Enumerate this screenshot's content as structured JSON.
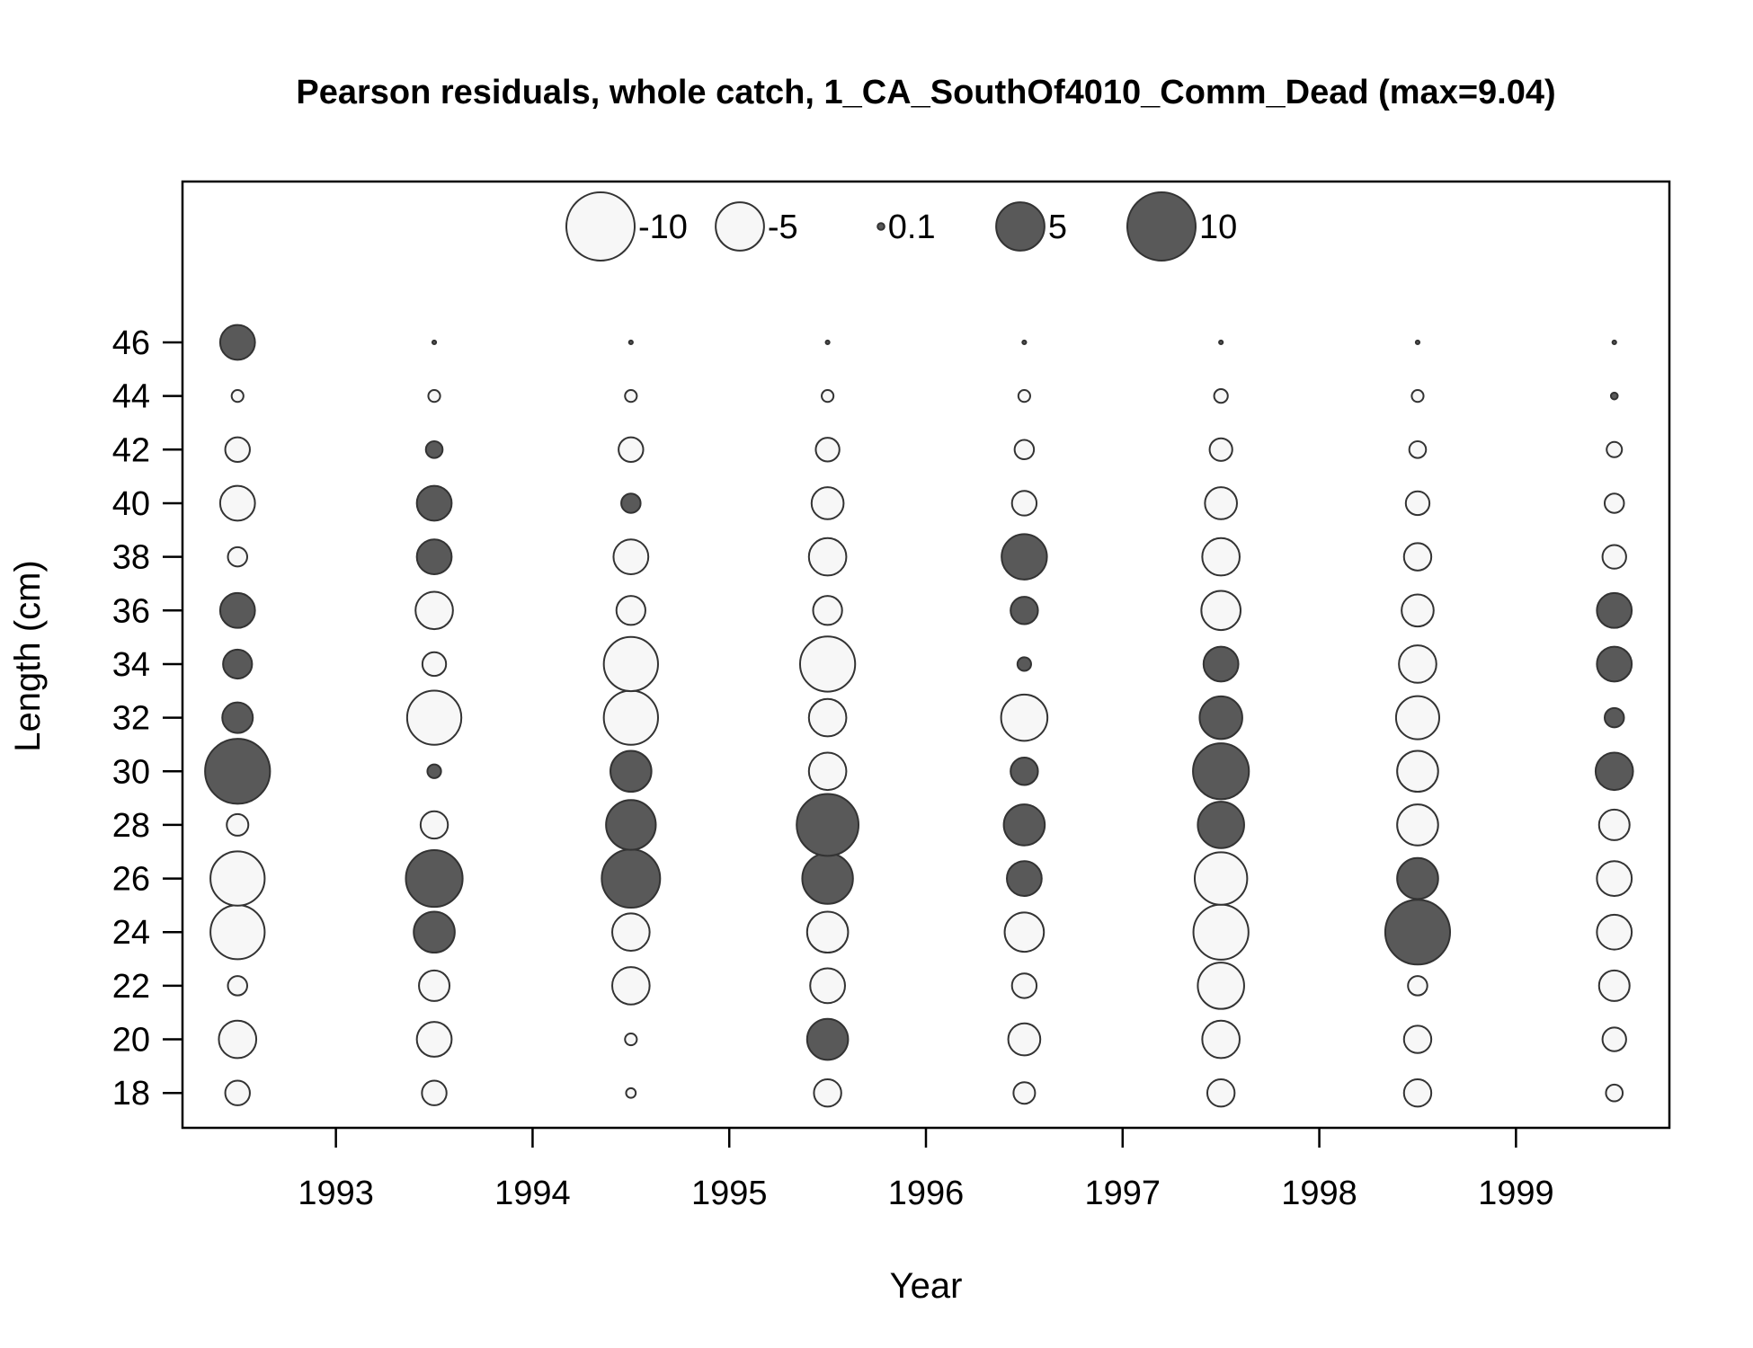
{
  "chart_data": {
    "type": "bubble",
    "title": "Pearson residuals, whole catch, 1_CA_SouthOf4010_Comm_Dead (max=9.04)",
    "xlabel": "Year",
    "ylabel": "Length (cm)",
    "x_ticks": [
      1993,
      1994,
      1995,
      1996,
      1997,
      1998,
      1999
    ],
    "y_ticks": [
      18,
      20,
      22,
      24,
      26,
      28,
      30,
      32,
      34,
      36,
      38,
      40,
      42,
      44,
      46
    ],
    "xlim": [
      1992.22,
      1999.78
    ],
    "ylim": [
      16.7,
      52.0
    ],
    "years": [
      1992.5,
      1993.5,
      1994.5,
      1995.5,
      1996.5,
      1997.5,
      1998.5,
      1999.5
    ],
    "lengths": [
      18,
      20,
      22,
      24,
      26,
      28,
      30,
      32,
      34,
      36,
      38,
      40,
      42,
      44,
      46
    ],
    "colors": {
      "positive_fill": "#595959",
      "negative_fill": "#f7f7f7",
      "stroke": "#333333"
    },
    "legend": {
      "position": "top-center",
      "items": [
        {
          "value": -10,
          "label": "-10"
        },
        {
          "value": -5,
          "label": "-5"
        },
        {
          "value": 0.1,
          "label": "0.1"
        },
        {
          "value": 5,
          "label": "5"
        },
        {
          "value": 10,
          "label": "10"
        }
      ]
    },
    "residuals": [
      [
        -1.3,
        -3.0,
        -0.8,
        -6.3,
        -6.3,
        -1.0,
        9.04,
        2.0,
        1.8,
        2.6,
        -0.8,
        -2.6,
        -1.3,
        -0.3,
        2.6
      ],
      [
        -1.3,
        -2.6,
        -2.0,
        3.6,
        6.9,
        -1.6,
        0.4,
        -6.3,
        -1.2,
        -3.0,
        2.6,
        2.6,
        0.6,
        -0.3,
        0.03
      ],
      [
        -0.2,
        -0.3,
        -3.0,
        -3.0,
        7.3,
        5.3,
        3.6,
        -6.3,
        -6.3,
        -1.8,
        -2.6,
        0.8,
        -1.3,
        -0.3,
        0.03
      ],
      [
        -1.6,
        3.6,
        -2.6,
        -3.6,
        5.5,
        8.2,
        -3.0,
        -3.0,
        -6.5,
        -1.8,
        -3.0,
        -2.2,
        -1.2,
        -0.3,
        0.03
      ],
      [
        -1.0,
        -2.2,
        -1.3,
        -3.3,
        2.6,
        3.6,
        1.6,
        -4.6,
        0.4,
        1.6,
        4.4,
        -1.3,
        -0.8,
        -0.3,
        0.03
      ],
      [
        -1.6,
        -3.0,
        -4.6,
        -6.5,
        -5.9,
        4.6,
        6.7,
        3.9,
        2.6,
        -3.3,
        -3.0,
        -2.2,
        -1.1,
        -0.4,
        0.03
      ],
      [
        -1.6,
        -1.6,
        -0.8,
        9.0,
        3.6,
        -3.6,
        -3.6,
        -4.0,
        -3.0,
        -2.2,
        -1.6,
        -1.2,
        -0.6,
        -0.3,
        0.03
      ],
      [
        -0.6,
        -1.2,
        -2.0,
        -2.6,
        -2.6,
        -2.0,
        3.0,
        0.8,
        2.6,
        2.6,
        -1.2,
        -0.8,
        -0.5,
        0.1,
        0.03
      ]
    ]
  }
}
